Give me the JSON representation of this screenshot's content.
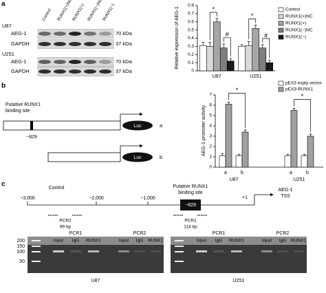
{
  "panel_labels": [
    "a",
    "b",
    "c"
  ],
  "blot": {
    "lanes": [
      "Control",
      "RUNX1(+)NC",
      "RUNX1(+)",
      "RUNX1(−)NC",
      "RUNX1(−)"
    ],
    "cells": [
      {
        "name": "U87",
        "rows": [
          {
            "protein": "AEG-1",
            "size": "70 kDa"
          },
          {
            "protein": "GAPDH",
            "size": "37 kDa"
          }
        ]
      },
      {
        "name": "U251",
        "rows": [
          {
            "protein": "AEG-1",
            "size": "70 kDa"
          },
          {
            "protein": "GAPDH",
            "size": "37 kDa"
          }
        ]
      }
    ]
  },
  "chart_data": [
    {
      "type": "bar",
      "y_label": "Relative expression of AEG-1",
      "categories": [
        "U87",
        "U251"
      ],
      "series": [
        {
          "name": "Control",
          "color": "#ffffff",
          "values": [
            0.31,
            0.3
          ],
          "errors": [
            0.04,
            0.02
          ]
        },
        {
          "name": "RUNX1(+)NC",
          "color": "#d9d9d9",
          "values": [
            0.3,
            0.31
          ],
          "errors": [
            0.05,
            0.05
          ]
        },
        {
          "name": "RUNX1(+)",
          "color": "#a6a6a6",
          "values": [
            0.6,
            0.52
          ],
          "errors": [
            0.04,
            0.04
          ]
        },
        {
          "name": "RUNX1(−)NC",
          "color": "#7f7f7f",
          "values": [
            0.28,
            0.28
          ],
          "errors": [
            0.05,
            0.04
          ]
        },
        {
          "name": "RUNX1(−)",
          "color": "#1a1a1a",
          "values": [
            0.12,
            0.1
          ],
          "errors": [
            0.03,
            0.03
          ]
        }
      ],
      "ylim": [
        0,
        0.8
      ],
      "yticks": [
        0,
        0.1,
        0.2,
        0.3,
        0.4,
        0.5,
        0.6,
        0.7,
        0.8
      ],
      "annotations": [
        "*",
        "#",
        "*",
        "#"
      ]
    },
    {
      "type": "bar",
      "y_label": "AEG-1 promoter activity",
      "categories": [
        "a",
        "b",
        "a",
        "b"
      ],
      "groups": [
        "U87",
        "U251"
      ],
      "series": [
        {
          "name": "pEX3 expty vector",
          "color": "#ffffff",
          "values": [
            1.1,
            1.1,
            1.1,
            1.1
          ],
          "errors": [
            0.2,
            0.15,
            0.15,
            0.15
          ]
        },
        {
          "name": "pEX3-RUNX1",
          "color": "#a0a0a0",
          "values": [
            6.1,
            3.4,
            5.5,
            3.0
          ],
          "errors": [
            0.2,
            0.2,
            0.2,
            0.2
          ]
        }
      ],
      "ylim": [
        0,
        7
      ],
      "yticks": [
        0,
        1,
        2,
        3,
        4,
        5,
        6,
        7
      ],
      "annotations": [
        "*",
        "*"
      ]
    }
  ],
  "constructs": {
    "site_label": [
      "Putative RUNX1",
      "binding site"
    ],
    "position": "−829",
    "reporter": "Luc",
    "names": [
      "a",
      "b"
    ]
  },
  "promoter_map": {
    "ticks": [
      "−3,000",
      "−2,000",
      "−1,000"
    ],
    "control": "Control",
    "site_label": [
      "Putative RUNX1",
      "binding site"
    ],
    "site": "−829",
    "tss": "+1",
    "tss_label": [
      "AEG-1",
      "TSS"
    ],
    "amplicons": [
      {
        "name": "PCR2",
        "size": "99 bp"
      },
      {
        "name": "PCR1",
        "size": "114 bp"
      }
    ]
  },
  "gels": {
    "ladder": [
      "200",
      "150",
      "100",
      "50"
    ],
    "panels": [
      {
        "cell": "U87",
        "groups": [
          {
            "name": "PCR1",
            "lanes": [
              "Input",
              "IgG",
              "RUNX1"
            ]
          },
          {
            "name": "PCR2",
            "lanes": [
              "Input",
              "IgG",
              "RUNX1"
            ]
          }
        ]
      },
      {
        "cell": "U251",
        "groups": [
          {
            "name": "PCR1",
            "lanes": [
              "Input",
              "IgG",
              "RUNX1"
            ]
          },
          {
            "name": "PCR2",
            "lanes": [
              "Input",
              "IgG",
              "RUNX1"
            ]
          }
        ]
      }
    ]
  }
}
